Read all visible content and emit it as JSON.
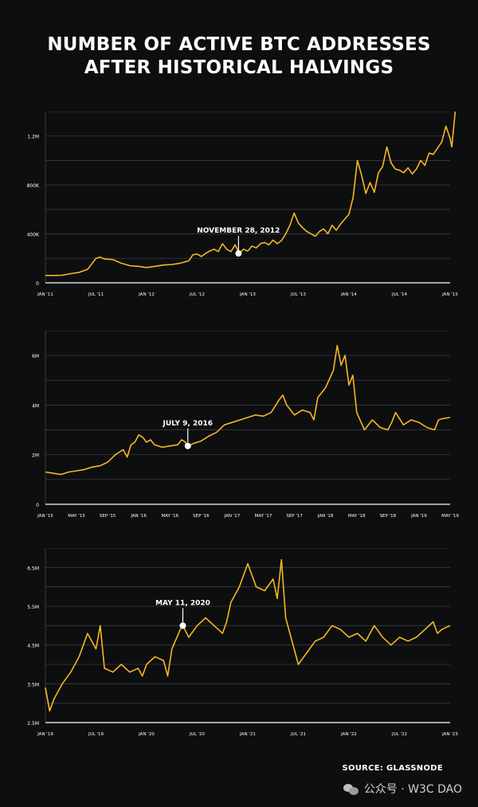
{
  "title_lines": [
    "NUMBER OF ACTIVE BTC ADDRESSES",
    "AFTER HISTORICAL HALVINGS"
  ],
  "source": "SOURCE: GLASSNODE",
  "watermark": "公众号 · W3C DAO",
  "colors": {
    "background": "#0d0e10",
    "line": "#f5b820",
    "grid": "#3a3b3e",
    "text": "#ffffff"
  },
  "chart_data": [
    {
      "type": "line",
      "ylim": [
        0,
        1400000
      ],
      "yticks": [
        0,
        400000,
        800000,
        1200000
      ],
      "ytick_labels": [
        "0",
        "400K",
        "800K",
        "1.2M"
      ],
      "xlim": [
        0,
        48
      ],
      "xticks": [
        0,
        6,
        12,
        18,
        24,
        30,
        36,
        42,
        48
      ],
      "xtick_labels": [
        "JAN '11",
        "JUL '11",
        "JAN '12",
        "JUL '12",
        "JAN '13",
        "JUL '13",
        "JAN '14",
        "JUL '14",
        "JAN '15"
      ],
      "annotation": {
        "text": "NOVEMBER 28, 2012",
        "x": 22.9,
        "y": 240000
      },
      "series": [
        {
          "points": [
            [
              0,
              60000
            ],
            [
              1,
              60000
            ],
            [
              2,
              62000
            ],
            [
              3,
              75000
            ],
            [
              4,
              85000
            ],
            [
              5,
              110000
            ],
            [
              6,
              200000
            ],
            [
              6.5,
              210000
            ],
            [
              7,
              195000
            ],
            [
              8,
              190000
            ],
            [
              9,
              160000
            ],
            [
              10,
              140000
            ],
            [
              11,
              135000
            ],
            [
              12,
              125000
            ],
            [
              13,
              135000
            ],
            [
              14,
              145000
            ],
            [
              15,
              150000
            ],
            [
              16,
              160000
            ],
            [
              17,
              180000
            ],
            [
              17.5,
              230000
            ],
            [
              18,
              235000
            ],
            [
              18.5,
              215000
            ],
            [
              19,
              240000
            ],
            [
              19.5,
              260000
            ],
            [
              20,
              275000
            ],
            [
              20.5,
              255000
            ],
            [
              21,
              320000
            ],
            [
              21.5,
              275000
            ],
            [
              22,
              255000
            ],
            [
              22.5,
              310000
            ],
            [
              23,
              240000
            ],
            [
              23.5,
              275000
            ],
            [
              24,
              260000
            ],
            [
              24.5,
              300000
            ],
            [
              25,
              285000
            ],
            [
              25.5,
              320000
            ],
            [
              26,
              330000
            ],
            [
              26.5,
              310000
            ],
            [
              27,
              350000
            ],
            [
              27.5,
              320000
            ],
            [
              28,
              345000
            ],
            [
              28.5,
              400000
            ],
            [
              29,
              470000
            ],
            [
              29.5,
              570000
            ],
            [
              30,
              490000
            ],
            [
              30.5,
              450000
            ],
            [
              31,
              420000
            ],
            [
              31.5,
              400000
            ],
            [
              32,
              380000
            ],
            [
              32.5,
              420000
            ],
            [
              33,
              440000
            ],
            [
              33.5,
              400000
            ],
            [
              34,
              470000
            ],
            [
              34.5,
              430000
            ],
            [
              35,
              480000
            ],
            [
              35.5,
              520000
            ],
            [
              36,
              560000
            ],
            [
              36.5,
              700000
            ],
            [
              37,
              1000000
            ],
            [
              37.5,
              880000
            ],
            [
              38,
              730000
            ],
            [
              38.5,
              820000
            ],
            [
              39,
              740000
            ],
            [
              39.5,
              900000
            ],
            [
              40,
              950000
            ],
            [
              40.5,
              1110000
            ],
            [
              41,
              980000
            ],
            [
              41.5,
              930000
            ],
            [
              42,
              920000
            ],
            [
              42.5,
              900000
            ],
            [
              43,
              940000
            ],
            [
              43.5,
              890000
            ],
            [
              44,
              930000
            ],
            [
              44.5,
              1000000
            ],
            [
              45,
              960000
            ],
            [
              45.5,
              1060000
            ],
            [
              46,
              1050000
            ],
            [
              46.5,
              1100000
            ],
            [
              47,
              1150000
            ],
            [
              47.5,
              1280000
            ],
            [
              48,
              1180000
            ],
            [
              48.2,
              1110000
            ],
            [
              48.6,
              1400000
            ]
          ]
        }
      ]
    },
    {
      "type": "line",
      "ylim": [
        0,
        7000000
      ],
      "yticks": [
        0,
        2000000,
        4000000,
        6000000
      ],
      "ytick_labels": [
        "0",
        "2M",
        "4M",
        "6M"
      ],
      "xlim": [
        0,
        52
      ],
      "xticks": [
        0,
        4,
        8,
        12,
        16,
        20,
        24,
        28,
        32,
        36,
        40,
        44,
        48,
        52
      ],
      "xtick_labels": [
        "JAN '15",
        "MAY '15",
        "SEP '15",
        "JAN '16",
        "MAY '16",
        "SEP '16",
        "JAN '17",
        "MAY '17",
        "SEP '17",
        "JAN '18",
        "MAY '18",
        "SEP '18",
        "JAN '19",
        "MAY '19"
      ],
      "annotation": {
        "text": "JULY 9, 2016",
        "x": 18.3,
        "y": 2350000
      },
      "series": [
        {
          "points": [
            [
              0,
              1300000
            ],
            [
              1,
              1250000
            ],
            [
              2,
              1200000
            ],
            [
              3,
              1300000
            ],
            [
              4,
              1350000
            ],
            [
              5,
              1400000
            ],
            [
              6,
              1500000
            ],
            [
              7,
              1550000
            ],
            [
              8,
              1700000
            ],
            [
              9,
              2000000
            ],
            [
              10,
              2200000
            ],
            [
              10.5,
              1900000
            ],
            [
              11,
              2400000
            ],
            [
              11.5,
              2500000
            ],
            [
              12,
              2800000
            ],
            [
              12.5,
              2700000
            ],
            [
              13,
              2500000
            ],
            [
              13.5,
              2600000
            ],
            [
              14,
              2400000
            ],
            [
              15,
              2300000
            ],
            [
              16,
              2350000
            ],
            [
              17,
              2400000
            ],
            [
              17.5,
              2600000
            ],
            [
              18,
              2500000
            ],
            [
              18.3,
              2350000
            ],
            [
              19,
              2450000
            ],
            [
              20,
              2550000
            ],
            [
              21,
              2750000
            ],
            [
              22,
              2900000
            ],
            [
              23,
              3200000
            ],
            [
              24,
              3300000
            ],
            [
              25,
              3400000
            ],
            [
              26,
              3500000
            ],
            [
              27,
              3600000
            ],
            [
              28,
              3550000
            ],
            [
              29,
              3700000
            ],
            [
              30,
              4200000
            ],
            [
              30.5,
              4400000
            ],
            [
              31,
              4000000
            ],
            [
              32,
              3600000
            ],
            [
              33,
              3800000
            ],
            [
              34,
              3700000
            ],
            [
              34.5,
              3400000
            ],
            [
              35,
              4300000
            ],
            [
              36,
              4700000
            ],
            [
              37,
              5400000
            ],
            [
              37.5,
              6400000
            ],
            [
              38,
              5600000
            ],
            [
              38.5,
              6000000
            ],
            [
              39,
              4800000
            ],
            [
              39.5,
              5200000
            ],
            [
              40,
              3700000
            ],
            [
              41,
              3000000
            ],
            [
              42,
              3400000
            ],
            [
              43,
              3100000
            ],
            [
              44,
              3000000
            ],
            [
              44.5,
              3300000
            ],
            [
              45,
              3700000
            ],
            [
              46,
              3200000
            ],
            [
              47,
              3400000
            ],
            [
              48,
              3300000
            ],
            [
              49,
              3100000
            ],
            [
              50,
              3000000
            ],
            [
              50.5,
              3400000
            ],
            [
              51,
              3450000
            ],
            [
              52,
              3500000
            ]
          ]
        }
      ]
    },
    {
      "type": "line",
      "ylim": [
        2500000,
        7000000
      ],
      "yticks": [
        2500000,
        3500000,
        4500000,
        5500000,
        6500000
      ],
      "ytick_labels": [
        "2.5M",
        "3.5M",
        "4.5M",
        "5.5M",
        "6.5M"
      ],
      "xlim": [
        0,
        48
      ],
      "xticks": [
        0,
        6,
        12,
        18,
        24,
        30,
        36,
        42,
        48
      ],
      "xtick_labels": [
        "JAN '19",
        "JUL '19",
        "JAN '20",
        "JUL '20",
        "JAN '21",
        "JUL '21",
        "JAN '22",
        "JUL '22",
        "JAN '23"
      ],
      "annotation": {
        "text": "MAY 11, 2020",
        "x": 16.3,
        "y": 5000000
      },
      "series": [
        {
          "points": [
            [
              0,
              3400000
            ],
            [
              0.5,
              2800000
            ],
            [
              1,
              3100000
            ],
            [
              2,
              3500000
            ],
            [
              3,
              3800000
            ],
            [
              4,
              4200000
            ],
            [
              5,
              4800000
            ],
            [
              6,
              4400000
            ],
            [
              6.5,
              5000000
            ],
            [
              7,
              3900000
            ],
            [
              8,
              3800000
            ],
            [
              9,
              4000000
            ],
            [
              10,
              3800000
            ],
            [
              11,
              3900000
            ],
            [
              11.5,
              3700000
            ],
            [
              12,
              4000000
            ],
            [
              13,
              4200000
            ],
            [
              14,
              4100000
            ],
            [
              14.5,
              3700000
            ],
            [
              15,
              4400000
            ],
            [
              16,
              4900000
            ],
            [
              16.3,
              5000000
            ],
            [
              17,
              4700000
            ],
            [
              18,
              5000000
            ],
            [
              19,
              5200000
            ],
            [
              20,
              5000000
            ],
            [
              21,
              4800000
            ],
            [
              21.5,
              5100000
            ],
            [
              22,
              5600000
            ],
            [
              23,
              6000000
            ],
            [
              23.5,
              6300000
            ],
            [
              24,
              6600000
            ],
            [
              25,
              6000000
            ],
            [
              26,
              5900000
            ],
            [
              27,
              6200000
            ],
            [
              27.5,
              5700000
            ],
            [
              28,
              6700000
            ],
            [
              28.5,
              5200000
            ],
            [
              29,
              4800000
            ],
            [
              30,
              4000000
            ],
            [
              31,
              4300000
            ],
            [
              32,
              4600000
            ],
            [
              33,
              4700000
            ],
            [
              34,
              5000000
            ],
            [
              35,
              4900000
            ],
            [
              36,
              4700000
            ],
            [
              37,
              4800000
            ],
            [
              38,
              4600000
            ],
            [
              39,
              5000000
            ],
            [
              40,
              4700000
            ],
            [
              41,
              4500000
            ],
            [
              42,
              4700000
            ],
            [
              43,
              4600000
            ],
            [
              44,
              4700000
            ],
            [
              45,
              4900000
            ],
            [
              46,
              5100000
            ],
            [
              46.5,
              4800000
            ],
            [
              47,
              4900000
            ],
            [
              48,
              5000000
            ]
          ]
        }
      ]
    }
  ]
}
